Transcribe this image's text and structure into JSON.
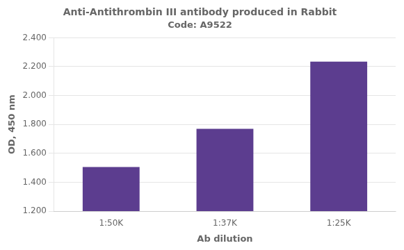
{
  "chart_data": {
    "type": "bar",
    "title": "Anti-Antithrombin III antibody produced in Rabbit",
    "subtitle": "Code: A9522",
    "categories": [
      "1:50K",
      "1:37K",
      "1:25K"
    ],
    "values": [
      1.505,
      1.77,
      2.235
    ],
    "color": "#5c3d8f",
    "xlabel": "Ab dilution",
    "ylabel": "OD, 450 nm",
    "ylim": [
      1.2,
      2.4
    ],
    "yticks": [
      {
        "value": 1.2,
        "label": "1.200"
      },
      {
        "value": 1.4,
        "label": "1.400"
      },
      {
        "value": 1.6,
        "label": "1.600"
      },
      {
        "value": 1.8,
        "label": "1.800"
      },
      {
        "value": 2.0,
        "label": "2.000"
      },
      {
        "value": 2.2,
        "label": "2.200"
      },
      {
        "value": 2.4,
        "label": "2.400"
      }
    ],
    "grid": true
  }
}
